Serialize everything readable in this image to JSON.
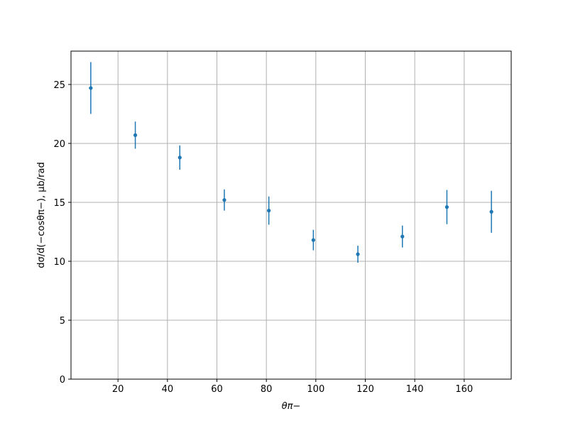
{
  "chart_data": {
    "type": "scatter",
    "x_label": "θπ−",
    "y_label": "dσ/d(−cosθπ−), μb/rad",
    "x": [
      9,
      27,
      45,
      63,
      81,
      99,
      117,
      135,
      153,
      171
    ],
    "series": [
      {
        "color": "#1f77b4",
        "values": [
          24.7,
          20.7,
          18.8,
          15.2,
          14.3,
          11.8,
          10.6,
          12.1,
          14.6,
          14.2
        ],
        "errors": [
          2.2,
          1.15,
          1.03,
          0.9,
          1.2,
          0.87,
          0.72,
          0.93,
          1.45,
          1.78
        ]
      }
    ],
    "xlim": [
      1,
      179
    ],
    "ylim": [
      0,
      27.83
    ],
    "xticks": [
      20,
      40,
      60,
      80,
      100,
      120,
      140,
      160
    ],
    "yticks": [
      0,
      5,
      10,
      15,
      20,
      25
    ],
    "grid": true
  }
}
